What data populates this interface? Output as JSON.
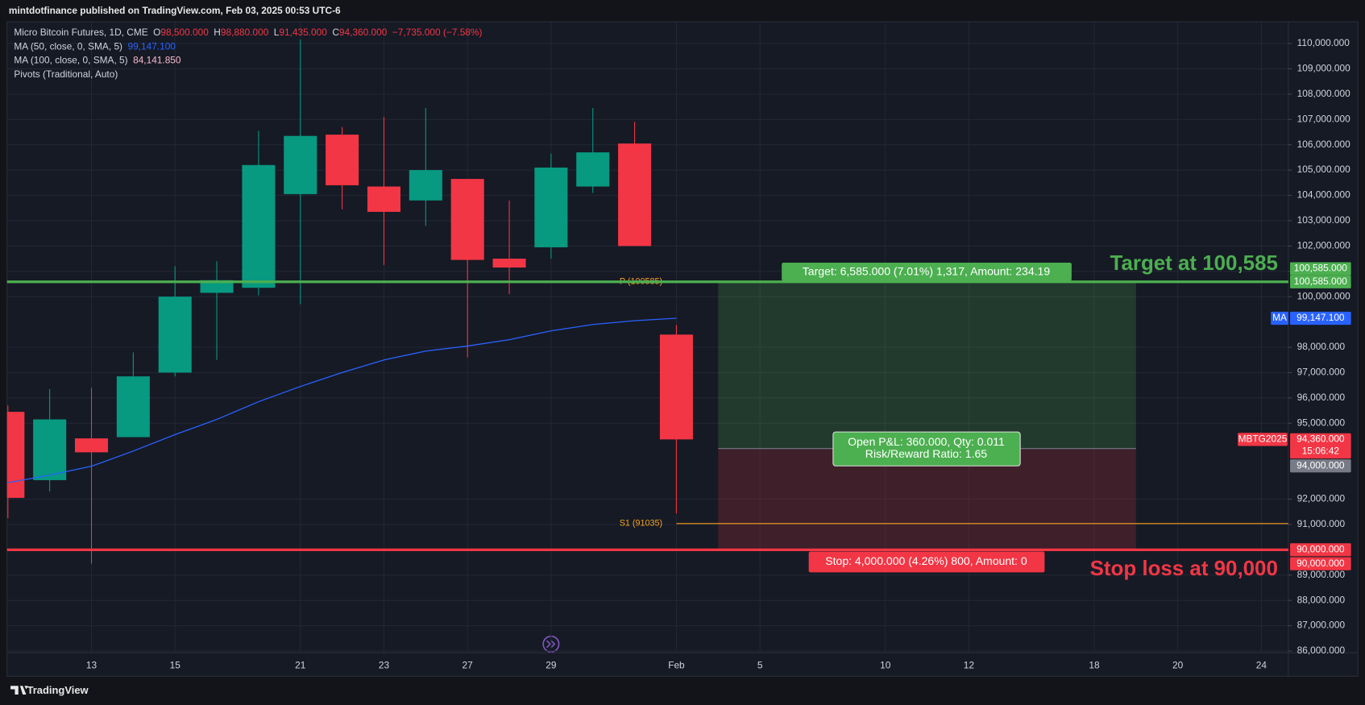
{
  "header": {
    "text": "mintdotfinance published on TradingView.com, Feb 03, 2025 00:53 UTC-6"
  },
  "footer": {
    "brand": "TradingView"
  },
  "chart_data": {
    "type": "candlestick",
    "legend": {
      "symbol": "Micro Bitcoin Futures, 1D, CME",
      "ohlc": [
        [
          "O",
          "98,500.000"
        ],
        [
          "H",
          "98,880.000"
        ],
        [
          "L",
          "91,435.000"
        ],
        [
          "C",
          "94,360.000"
        ]
      ],
      "change": "−7,735.000 (−7.58%)",
      "indicators": [
        {
          "name": "MA (50, close, 0, SMA, 5)",
          "value_label": "99,147.100",
          "color": "#2962ff"
        },
        {
          "name": "MA (100, close, 0, SMA, 5)",
          "value_label": "84,141.850",
          "color": "#f8bbd0"
        },
        {
          "name": "Pivots (Traditional, Auto)"
        }
      ]
    },
    "categories": [
      null,
      null,
      "13",
      null,
      "15",
      null,
      null,
      "21",
      null,
      "23",
      null,
      "27",
      null,
      "29",
      null,
      null,
      "Feb",
      null,
      "5",
      null,
      null,
      "10",
      null,
      "12",
      null,
      null,
      "18",
      null,
      "20",
      null,
      "24"
    ],
    "open": [
      95450,
      92750,
      94400,
      94450,
      97000,
      100150,
      100350,
      104050,
      106400,
      104350,
      103800,
      104650,
      101500,
      101950,
      104350,
      106050,
      98500,
      null,
      null,
      null,
      null,
      null,
      null,
      null,
      null,
      null,
      null,
      null,
      null,
      null,
      null
    ],
    "high": [
      95700,
      96350,
      96400,
      97800,
      101200,
      101400,
      106550,
      110150,
      106700,
      107100,
      107450,
      104650,
      103800,
      105650,
      107450,
      106900,
      98880,
      null,
      null,
      null,
      null,
      null,
      null,
      null,
      null,
      null,
      null,
      null,
      null,
      null,
      null
    ],
    "low": [
      91250,
      92300,
      89450,
      94450,
      96850,
      97500,
      100050,
      99700,
      103450,
      101250,
      102800,
      97600,
      100100,
      101500,
      104100,
      102000,
      91435,
      null,
      null,
      null,
      null,
      null,
      null,
      null,
      null,
      null,
      null,
      null,
      null,
      null,
      null
    ],
    "close": [
      92050,
      95150,
      93850,
      96850,
      100000,
      100650,
      105200,
      106350,
      104400,
      103350,
      105000,
      101450,
      101150,
      105100,
      105700,
      102000,
      94360,
      null,
      null,
      null,
      null,
      null,
      null,
      null,
      null,
      null,
      null,
      null,
      null,
      null,
      null
    ],
    "up_color": "#089981",
    "down_color": "#f23645",
    "series": [
      {
        "name": "MA",
        "color": "#2962ff",
        "values": [
          92650,
          92950,
          93300,
          93900,
          94550,
          95150,
          95850,
          96450,
          97000,
          97500,
          97850,
          98050,
          98300,
          98650,
          98900,
          99050,
          99147.1,
          null,
          null,
          null,
          null,
          null,
          null,
          null,
          null,
          null,
          null,
          null,
          null,
          null,
          null
        ]
      }
    ],
    "ylim": [
      85930,
      110860
    ],
    "yticks": [
      {
        "value": 110000,
        "label": "110,000.000"
      },
      {
        "value": 109000,
        "label": "109,000.000"
      },
      {
        "value": 108000,
        "label": "108,000.000"
      },
      {
        "value": 107000,
        "label": "107,000.000"
      },
      {
        "value": 106000,
        "label": "106,000.000"
      },
      {
        "value": 105000,
        "label": "105,000.000"
      },
      {
        "value": 104000,
        "label": "104,000.000"
      },
      {
        "value": 103000,
        "label": "103,000.000"
      },
      {
        "value": 102000,
        "label": "102,000.000"
      },
      {
        "value": 101000,
        "label": "101,000.000"
      },
      {
        "value": 100000,
        "label": "100,000.000"
      },
      {
        "value": 98000,
        "label": "98,000.000"
      },
      {
        "value": 97000,
        "label": "97,000.000"
      },
      {
        "value": 96000,
        "label": "96,000.000"
      },
      {
        "value": 95000,
        "label": "95,000.000"
      },
      {
        "value": 92000,
        "label": "92,000.000"
      },
      {
        "value": 91000,
        "label": "91,000.000"
      },
      {
        "value": 89000,
        "label": "89,000.000"
      },
      {
        "value": 88000,
        "label": "88,000.000"
      },
      {
        "value": 87000,
        "label": "87,000.000"
      },
      {
        "value": 86000,
        "label": "86,000.000"
      }
    ],
    "grid": true,
    "pivots": [
      {
        "label": "P (100585)",
        "value": 100585,
        "color": "#f7a21b"
      },
      {
        "label": "S1 (91035)",
        "value": 91035,
        "color": "#f7a21b"
      }
    ],
    "position": {
      "x": [
        17,
        27
      ],
      "entry": 94000,
      "target": 100585,
      "stop": 90000,
      "target_label": "Target: 6,585.000 (7.01%) 1,317, Amount: 234.19",
      "pnl_label": [
        "Open P&L: 360.000, Qty: 0.011",
        "Risk/Reward Ratio: 1.65"
      ],
      "stop_label": "Stop: 4,000.000 (4.26%) 800, Amount: 0",
      "target_note": "Target at 100,585",
      "stop_note": "Stop loss at 90,000",
      "target_axis_label": "100,585.000",
      "entry_axis_label": "94,000.000",
      "stop_axis_label": "90,000.000"
    },
    "ma_tag": "MA",
    "last_price": {
      "symbol": "MBTG2025",
      "label": "94,360.000",
      "countdown": "15:06:42"
    }
  }
}
